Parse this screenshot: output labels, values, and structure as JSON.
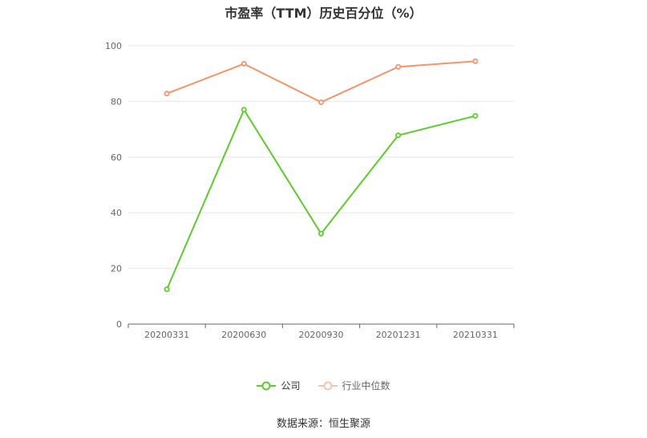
{
  "chart_data": {
    "type": "line",
    "title": "市盈率（TTM）历史百分位（%）",
    "categories": [
      "20200331",
      "20200630",
      "20200930",
      "20201231",
      "20210331"
    ],
    "ylim": [
      0,
      100
    ],
    "yticks": [
      0,
      20,
      40,
      60,
      80,
      100
    ],
    "grid": true,
    "legend_position": "bottom",
    "series": [
      {
        "name": "公司",
        "color": "#5ccc2a",
        "values": [
          12.5,
          77.0,
          32.5,
          67.8,
          74.8
        ]
      },
      {
        "name": "行业中位数",
        "color": "#f49467",
        "values": [
          82.8,
          93.5,
          79.7,
          92.4,
          94.4
        ]
      }
    ]
  },
  "source_text": "数据来源：恒生聚源"
}
